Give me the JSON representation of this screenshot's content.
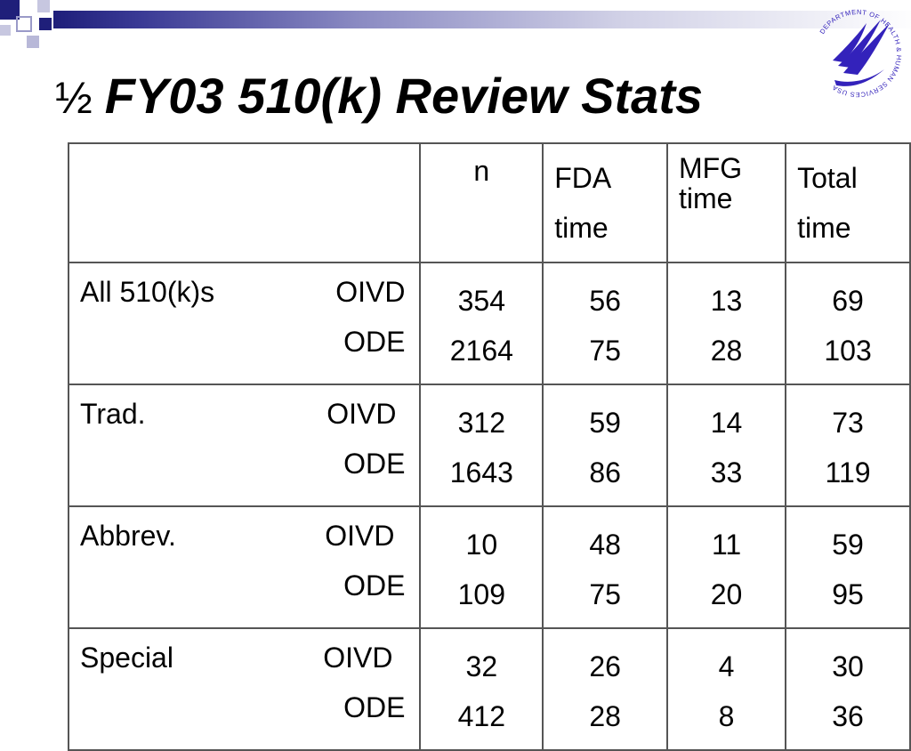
{
  "slide": {
    "title_prefix": "½",
    "title": "FY03 510(k) Review Stats"
  },
  "logo": {
    "seal_text": "DEPARTMENT OF HEALTH & HUMAN SERVICES USA",
    "accent_color": "#3322bb"
  },
  "table": {
    "headers": {
      "n": "n",
      "fda": [
        "FDA",
        "time"
      ],
      "mfg": [
        "MFG",
        "time"
      ],
      "total": [
        "Total",
        "time"
      ]
    },
    "groups": [
      {
        "category": "All 510(k)s",
        "sub1": "OIVD",
        "sub2": "ODE",
        "n": [
          "354",
          "2164"
        ],
        "fda": [
          "56",
          "75"
        ],
        "mfg": [
          "13",
          "28"
        ],
        "total": [
          "69",
          "103"
        ]
      },
      {
        "category": "Trad.",
        "sub1": "OIVD",
        "sub2": "ODE",
        "n": [
          "312",
          "1643"
        ],
        "fda": [
          "59",
          "86"
        ],
        "mfg": [
          "14",
          "33"
        ],
        "total": [
          "73",
          "119"
        ]
      },
      {
        "category": "Abbrev.",
        "sub1": "OIVD",
        "sub2": "ODE",
        "n": [
          "10",
          "109"
        ],
        "fda": [
          "48",
          "75"
        ],
        "mfg": [
          "11",
          "20"
        ],
        "total": [
          "59",
          "95"
        ]
      },
      {
        "category": "Special",
        "sub1": "OIVD",
        "sub2": "ODE",
        "n": [
          "32",
          "412"
        ],
        "fda": [
          "26",
          "28"
        ],
        "mfg": [
          "4",
          "8"
        ],
        "total": [
          "30",
          "36"
        ]
      }
    ]
  }
}
